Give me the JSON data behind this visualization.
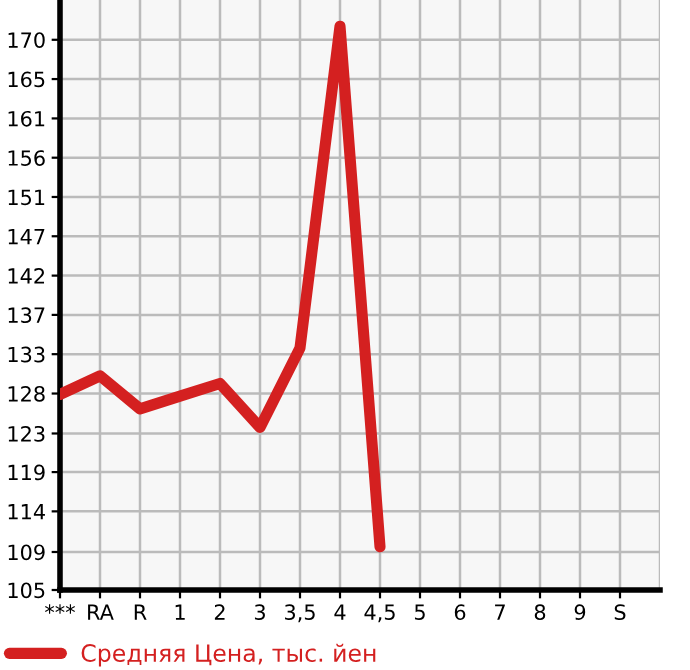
{
  "chart_data": {
    "type": "line",
    "categories": [
      "***",
      "RA",
      "R",
      "1",
      "2",
      "3",
      "3,5",
      "4",
      "4,5",
      "5",
      "6",
      "7",
      "8",
      "9",
      "S"
    ],
    "series": [
      {
        "name": "Средняя Цена, тыс. йен",
        "color": "#d42020",
        "values": [
          128.1,
          130.3,
          126.4,
          127.9,
          129.4,
          124.2,
          133.6,
          171.6,
          110.1,
          null,
          null,
          null,
          null,
          null,
          null
        ]
      }
    ],
    "ylim": [
      105,
      174.7
    ],
    "yticks": [
      105,
      {
        "value": 109.49,
        "label": "109"
      },
      {
        "value": 114.29,
        "label": "114"
      },
      {
        "value": 118.93,
        "label": "119"
      },
      {
        "value": 123.49,
        "label": "123"
      },
      {
        "value": 128.21,
        "label": "128"
      },
      {
        "value": 132.86,
        "label": "133"
      },
      {
        "value": 137.5,
        "label": "137"
      },
      {
        "value": 142.14,
        "label": "142"
      },
      {
        "value": 146.79,
        "label": "147"
      },
      {
        "value": 151.43,
        "label": "151"
      },
      {
        "value": 156.07,
        "label": "156"
      },
      {
        "value": 160.71,
        "label": "161"
      },
      {
        "value": 165.36,
        "label": "165"
      },
      170
    ],
    "grid": true,
    "legend": "bottom left",
    "marker": "none",
    "line_style": "solid"
  }
}
